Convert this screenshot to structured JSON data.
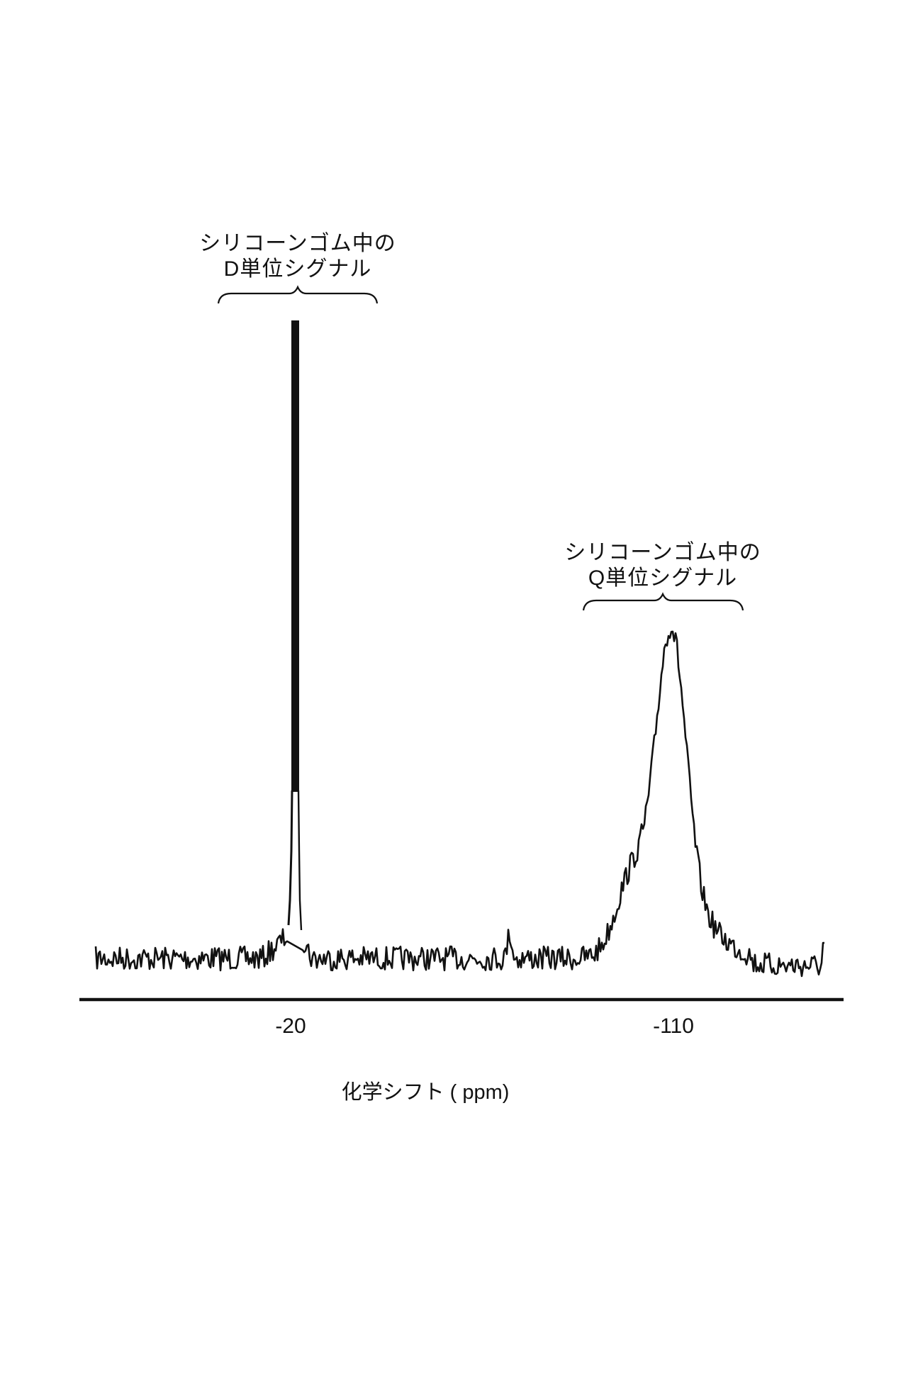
{
  "chart_data": {
    "type": "line",
    "title": "",
    "xlabel": "化学シフト ( ppm)",
    "ylabel": "",
    "x_axis": {
      "reversed": true,
      "ticks": [
        {
          "value": -20,
          "label": "-20"
        },
        {
          "value": -110,
          "label": "-110"
        }
      ],
      "approx_range_ppm": [
        20,
        -160
      ]
    },
    "y_axis": {
      "visible": false,
      "unit": "relative intensity"
    },
    "grid": false,
    "legend": null,
    "series": [
      {
        "name": "29Si NMR spectrum",
        "color": "#111111",
        "points_ppm_intensity": [
          [
            18,
            0.04
          ],
          [
            10,
            0.03
          ],
          [
            0,
            0.04
          ],
          [
            -8,
            0.05
          ],
          [
            -14,
            0.08
          ],
          [
            -18,
            0.25
          ],
          [
            -19.5,
            0.9
          ],
          [
            -20,
            1.0
          ],
          [
            -20.5,
            0.9
          ],
          [
            -22,
            0.15
          ],
          [
            -24,
            0.03
          ],
          [
            -35,
            0.04
          ],
          [
            -50,
            0.04
          ],
          [
            -60,
            0.05
          ],
          [
            -65,
            0.1
          ],
          [
            -70,
            0.04
          ],
          [
            -80,
            0.04
          ],
          [
            -88,
            0.05
          ],
          [
            -92,
            0.12
          ],
          [
            -96,
            0.2
          ],
          [
            -100,
            0.24
          ],
          [
            -103,
            0.26
          ],
          [
            -106,
            0.36
          ],
          [
            -108,
            0.5
          ],
          [
            -110,
            0.6
          ],
          [
            -112,
            0.55
          ],
          [
            -114,
            0.4
          ],
          [
            -116,
            0.22
          ],
          [
            -118,
            0.12
          ],
          [
            -122,
            0.07
          ],
          [
            -128,
            0.04
          ],
          [
            -136,
            0.03
          ],
          [
            -142,
            0.04
          ]
        ]
      }
    ],
    "annotations": [
      {
        "text": "シリコーンゴム中の\nD単位シグナル",
        "target_ppm": -20,
        "bracket": true
      },
      {
        "text": "シリコーンゴム中の\nQ単位シグナル",
        "target_ppm": -110,
        "bracket": true
      }
    ]
  },
  "annotations": {
    "d_unit": {
      "line1": "シリコーンゴム中の",
      "line2": "D単位シグナル"
    },
    "q_unit": {
      "line1": "シリコーンゴム中の",
      "line2": "Q単位シグナル"
    }
  },
  "axis": {
    "tick_labels": [
      "-20",
      "-110"
    ],
    "title": "化学シフト ( ppm)"
  },
  "colors": {
    "line": "#111111",
    "background": "#ffffff"
  }
}
